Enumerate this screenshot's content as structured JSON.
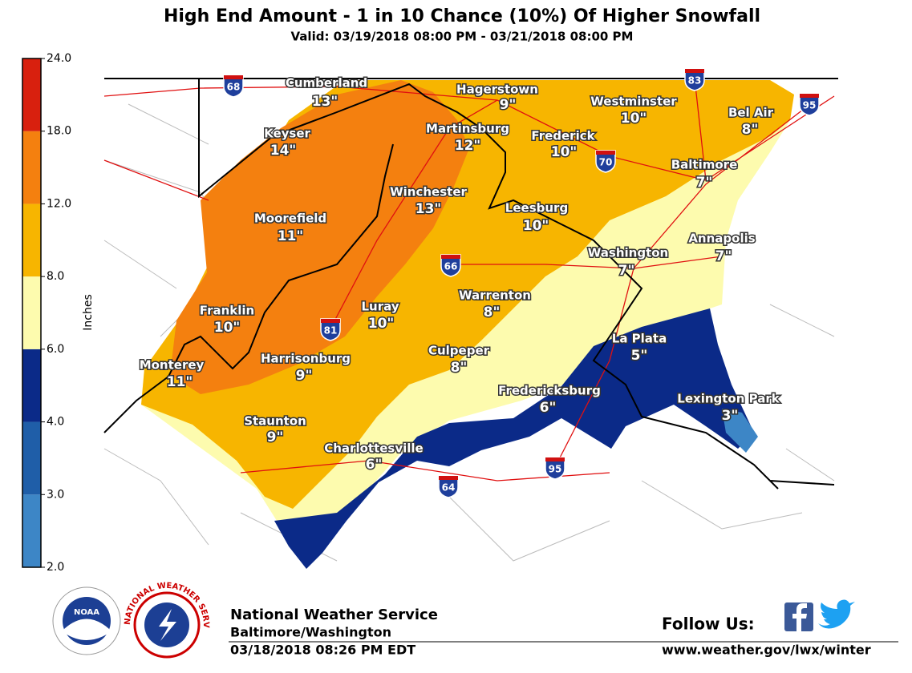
{
  "header": {
    "title": "High End Amount - 1 in 10 Chance (10%) Of Higher Snowfall",
    "subtitle": "Valid: 03/19/2018 08:00 PM - 03/21/2018 08:00 PM"
  },
  "legend": {
    "title": "Inches",
    "ticks": [
      {
        "value": 2,
        "label": "2.0"
      },
      {
        "value": 3,
        "label": "3.0"
      },
      {
        "value": 4,
        "label": "4.0"
      },
      {
        "value": 6,
        "label": "6.0"
      },
      {
        "value": 8,
        "label": "8.0"
      },
      {
        "value": 12,
        "label": "12.0"
      },
      {
        "value": 18,
        "label": "18.0"
      },
      {
        "value": 24,
        "label": "24.0"
      }
    ],
    "colors": [
      "#3d86c6",
      "#1f5ea8",
      "#0b2a88",
      "#fdfbae",
      "#f7b500",
      "#f4800f",
      "#d8200e"
    ]
  },
  "cities": [
    {
      "name": "Cumberland",
      "amount": "13\""
    },
    {
      "name": "Hagerstown",
      "amount": "9\""
    },
    {
      "name": "Westminster",
      "amount": "10\""
    },
    {
      "name": "Bel Air",
      "amount": "8\""
    },
    {
      "name": "Keyser",
      "amount": "14\""
    },
    {
      "name": "Martinsburg",
      "amount": "12\""
    },
    {
      "name": "Frederick",
      "amount": "10\""
    },
    {
      "name": "Baltimore",
      "amount": "7\""
    },
    {
      "name": "Winchester",
      "amount": "13\""
    },
    {
      "name": "Leesburg",
      "amount": "10\""
    },
    {
      "name": "Moorefield",
      "amount": "11\""
    },
    {
      "name": "Annapolis",
      "amount": "7\""
    },
    {
      "name": "Washington",
      "amount": "7\""
    },
    {
      "name": "Warrenton",
      "amount": "8\""
    },
    {
      "name": "Franklin",
      "amount": "10\""
    },
    {
      "name": "Luray",
      "amount": "10\""
    },
    {
      "name": "La Plata",
      "amount": "5\""
    },
    {
      "name": "Harrisonburg",
      "amount": "9\""
    },
    {
      "name": "Culpeper",
      "amount": "8\""
    },
    {
      "name": "Monterey",
      "amount": "11\""
    },
    {
      "name": "Fredericksburg",
      "amount": "6\""
    },
    {
      "name": "Lexington Park",
      "amount": "3\""
    },
    {
      "name": "Staunton",
      "amount": "9\""
    },
    {
      "name": "Charlottesville",
      "amount": "6\""
    }
  ],
  "highways": [
    68,
    83,
    95,
    70,
    66,
    81,
    95,
    64
  ],
  "logos": {
    "noaa": "NOAA",
    "nws": "NATIONAL WEATHER SERVICE"
  },
  "footer": {
    "office": "National Weather Service",
    "location": "Baltimore/Washington",
    "issued": "03/18/2018 08:26 PM EDT",
    "follow": "Follow Us:",
    "url": "www.weather.gov/lwx/winter"
  }
}
